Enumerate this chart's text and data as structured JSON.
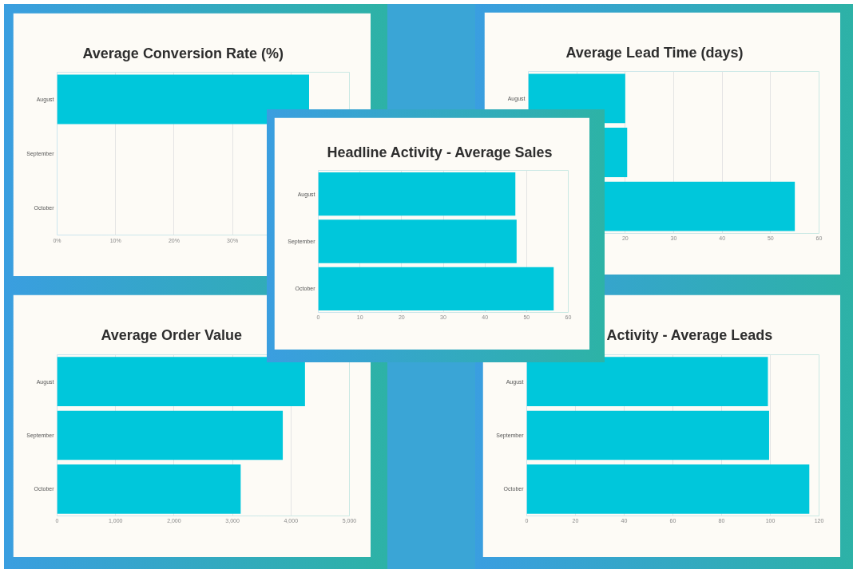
{
  "chart_data": [
    {
      "type": "bar",
      "orientation": "horizontal",
      "title": "Average Conversion Rate (%)",
      "categories": [
        "August",
        "September",
        "October"
      ],
      "values": [
        43.1,
        null,
        null
      ],
      "color": "#00c7db",
      "xlim": [
        0,
        50
      ],
      "xticks": [
        {
          "value": 0,
          "label": "0%"
        },
        {
          "value": 10,
          "label": "10%"
        },
        {
          "value": 20,
          "label": "20%"
        },
        {
          "value": 30,
          "label": "30%"
        },
        {
          "value": 40,
          "label": null
        },
        {
          "value": 50,
          "label": null
        }
      ],
      "grid": "x"
    },
    {
      "type": "bar",
      "orientation": "horizontal",
      "title": "Average Lead Time (days)",
      "categories": [
        "August",
        null,
        null
      ],
      "values": [
        20,
        20.4,
        55
      ],
      "color": "#00c7db",
      "xlim": [
        0,
        60
      ],
      "xticks": [
        {
          "value": 0,
          "label": null
        },
        {
          "value": 10,
          "label": null
        },
        20,
        30,
        40,
        50,
        60
      ],
      "grid": "x"
    },
    {
      "type": "bar",
      "orientation": "horizontal",
      "title": "Headline Activity - Average Sales",
      "categories": [
        "August",
        "September",
        "October"
      ],
      "values": [
        47.3,
        47.6,
        56.5
      ],
      "color": "#00c7db",
      "xlim": [
        0,
        60
      ],
      "xticks": [
        0,
        10,
        20,
        30,
        40,
        50,
        60
      ],
      "grid": "x"
    },
    {
      "type": "bar",
      "orientation": "horizontal",
      "title": "Average Order Value",
      "categories": [
        "August",
        "September",
        "October"
      ],
      "values": [
        4240,
        3860,
        3140
      ],
      "color": "#00c7db",
      "xlim": [
        0,
        5000
      ],
      "xticks": [
        0,
        {
          "value": 1000,
          "label": "1,000"
        },
        {
          "value": 2000,
          "label": "2,000"
        },
        {
          "value": 3000,
          "label": "3,000"
        },
        {
          "value": 4000,
          "label": "4,000"
        },
        {
          "value": 5000,
          "label": "5,000"
        }
      ],
      "grid": "x"
    },
    {
      "type": "bar",
      "orientation": "horizontal",
      "title": "Activity - Average Leads",
      "categories": [
        "August",
        "September",
        "October"
      ],
      "values": [
        99,
        99.5,
        116
      ],
      "color": "#00c7db",
      "xlim": [
        0,
        120
      ],
      "xticks": [
        0,
        20,
        40,
        60,
        80,
        100,
        120
      ],
      "grid": "x"
    }
  ]
}
